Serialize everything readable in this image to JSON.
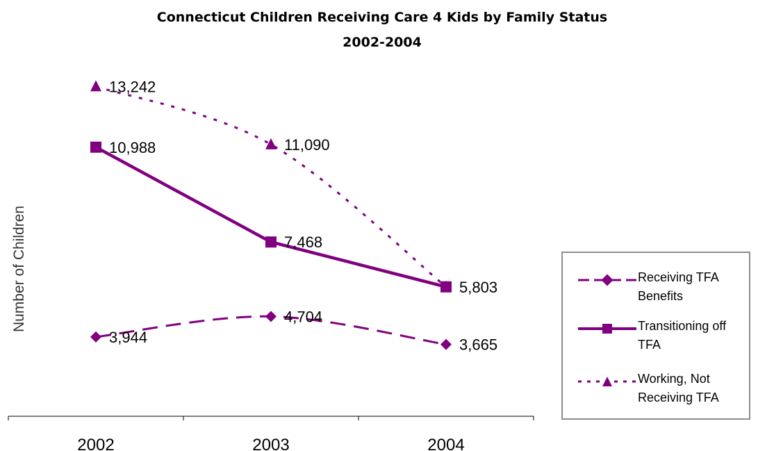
{
  "chart_data": {
    "type": "line",
    "title": "Connecticut Children Receiving Care 4 Kids by Family Status",
    "subtitle": "2002-2004",
    "xlabel": "",
    "ylabel": "Number of Children",
    "x": [
      "2002",
      "2003",
      "2004"
    ],
    "ylim": [
      1000,
      14000
    ],
    "grid": false,
    "legend_position": "right",
    "series": [
      {
        "name": "Receiving TFA Benefits",
        "values": [
          3944,
          4704,
          3665
        ],
        "labels": [
          "3,944",
          "4,704",
          "3,665"
        ],
        "marker": "diamond",
        "dash": "long-dash",
        "color": "#800080"
      },
      {
        "name": "Transitioning off TFA",
        "values": [
          10988,
          7468,
          5803
        ],
        "labels": [
          "10,988",
          "7,468",
          "5,803"
        ],
        "marker": "square",
        "dash": "solid",
        "color": "#800080"
      },
      {
        "name": "Working, Not Receiving TFA",
        "values": [
          13242,
          11090,
          5803
        ],
        "labels": [
          "13,242",
          "11,090",
          ""
        ],
        "marker": "triangle",
        "dash": "dotted",
        "color": "#800080"
      }
    ]
  }
}
